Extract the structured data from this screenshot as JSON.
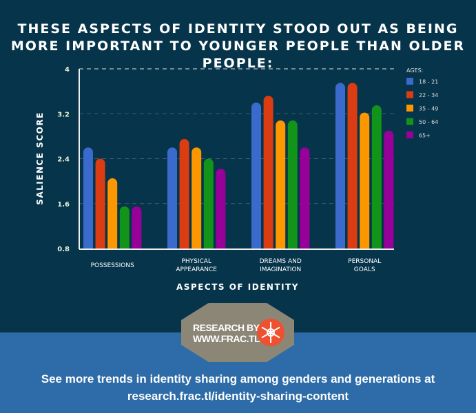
{
  "header": {
    "title_line1": "THESE ASPECTS OF IDENTITY STOOD OUT AS BEING",
    "title_line2": "MORE IMPORTANT TO YOUNGER PEOPLE THAN OLDER PEOPLE:"
  },
  "chart_data": {
    "type": "bar",
    "xlabel": "ASPECTS OF IDENTITY",
    "ylabel": "SALIENCE SCORE",
    "ylim": [
      0.8,
      4
    ],
    "yticks": [
      "0.8",
      "1.6",
      "2.4",
      "3.2",
      "4"
    ],
    "grid": true,
    "legend_title": "AGES:",
    "legend_position": "top-right",
    "categories": [
      [
        "POSSESSIONS"
      ],
      [
        "PHYSICAL",
        "APPEARANCE"
      ],
      [
        "DREAMS AND",
        "IMAGINATION"
      ],
      [
        "PERSONAL",
        "GOALS"
      ]
    ],
    "series": [
      {
        "name": "18 - 21",
        "color": "#3a6bcc",
        "values": [
          2.6,
          2.6,
          3.4,
          3.75
        ]
      },
      {
        "name": "22 - 34",
        "color": "#dc3c12",
        "values": [
          2.4,
          2.75,
          3.52,
          3.75
        ]
      },
      {
        "name": "35 - 49",
        "color": "#fd9700",
        "values": [
          2.05,
          2.6,
          3.08,
          3.22
        ]
      },
      {
        "name": "50 - 64",
        "color": "#12941a",
        "values": [
          1.55,
          2.4,
          3.08,
          3.35
        ]
      },
      {
        "name": "65+",
        "color": "#98009a",
        "values": [
          1.55,
          2.22,
          2.6,
          2.9
        ]
      }
    ]
  },
  "badge": {
    "line1": "RESEARCH BY",
    "line2": "WWW.FRAC.TL",
    "icon": "snowflake-icon",
    "color": "#8c8676",
    "icon_color": "#ef5030"
  },
  "footer": {
    "line1": "See more trends in identity sharing among genders and generations at",
    "line2": "research.frac.tl/identity-sharing-content"
  }
}
